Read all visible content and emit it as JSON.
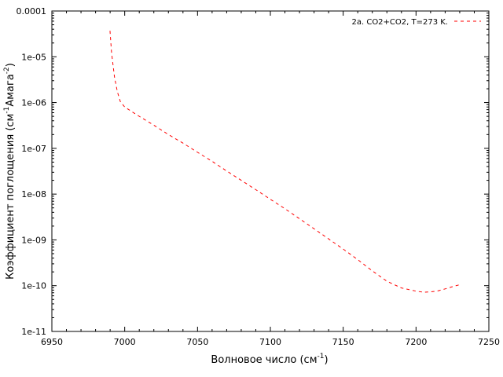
{
  "colors": {
    "series": "#ff0000"
  },
  "chart_data": {
    "type": "line",
    "title": "",
    "xlabel": {
      "main": "Волновое число (см",
      "sup": "-1",
      "tail": ")"
    },
    "ylabel": {
      "main": "Коэффициент поглощения (см",
      "sup1": "-1",
      "mid": "Амага",
      "sup2": "-2",
      "tail": ")"
    },
    "xlim": [
      6950,
      7250
    ],
    "ylim": [
      1e-11,
      0.0001
    ],
    "yscale": "log",
    "grid": false,
    "legend_position": "top-right",
    "x_ticks": [
      "6950",
      "7000",
      "7050",
      "7100",
      "7150",
      "7200",
      "7250"
    ],
    "y_ticks": [
      "0.0001",
      "1e-05",
      "1e-06",
      "1e-07",
      "1e-08",
      "1e-09",
      "1e-10",
      "1e-11"
    ],
    "series": [
      {
        "name": "2a.  CO2+CO2, T=273 K.",
        "style": "dashed",
        "x": [
          6989.9,
          6991,
          6993,
          6995,
          6997,
          7000,
          7005,
          7010,
          7020,
          7030,
          7040,
          7050,
          7060,
          7070,
          7080,
          7090,
          7100,
          7110,
          7120,
          7130,
          7140,
          7150,
          7160,
          7170,
          7180,
          7190,
          7200,
          7205,
          7210,
          7215,
          7220,
          7225,
          7229.5
        ],
        "y": [
          3.7e-05,
          1.2e-05,
          3.6e-06,
          1.7e-06,
          1.05e-06,
          8e-07,
          6.3e-07,
          5e-07,
          3.2e-07,
          2e-07,
          1.3e-07,
          8.2e-08,
          5.2e-08,
          3.2e-08,
          2e-08,
          1.25e-08,
          7.7e-09,
          4.8e-09,
          2.9e-09,
          1.75e-09,
          1.05e-09,
          6.3e-10,
          3.7e-10,
          2.1e-10,
          1.25e-10,
          8.9e-11,
          7.6e-11,
          7.2e-11,
          7.3e-11,
          7.7e-11,
          8.5e-11,
          9.5e-11,
          1.04e-10
        ]
      }
    ]
  }
}
